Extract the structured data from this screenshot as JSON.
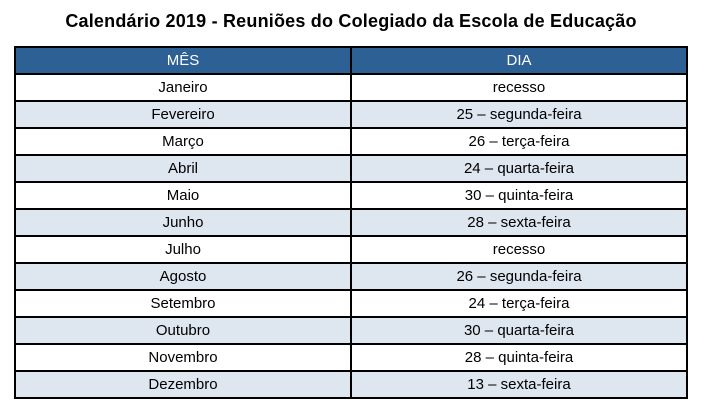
{
  "title": "Calendário 2019 - Reuniões do Colegiado da Escola de Educação",
  "table": {
    "headers": [
      "MÊS",
      "DIA"
    ],
    "rows": [
      {
        "mes": "Janeiro",
        "dia": "recesso"
      },
      {
        "mes": "Fevereiro",
        "dia": "25 – segunda-feira"
      },
      {
        "mes": "Março",
        "dia": "26 – terça-feira"
      },
      {
        "mes": "Abril",
        "dia": "24 – quarta-feira"
      },
      {
        "mes": "Maio",
        "dia": "30 – quinta-feira"
      },
      {
        "mes": "Junho",
        "dia": "28 – sexta-feira"
      },
      {
        "mes": "Julho",
        "dia": "recesso"
      },
      {
        "mes": "Agosto",
        "dia": "26 – segunda-feira"
      },
      {
        "mes": "Setembro",
        "dia": "24 – terça-feira"
      },
      {
        "mes": "Outubro",
        "dia": "30 – quarta-feira"
      },
      {
        "mes": "Novembro",
        "dia": "28 – quinta-feira"
      },
      {
        "mes": "Dezembro",
        "dia": "13 – sexta-feira"
      }
    ]
  },
  "colors": {
    "header_bg": "#2D6094",
    "header_text": "#FFFFFF",
    "row_alt_bg": "#DEE6F0",
    "border": "#000000",
    "title_text": "#000000"
  }
}
